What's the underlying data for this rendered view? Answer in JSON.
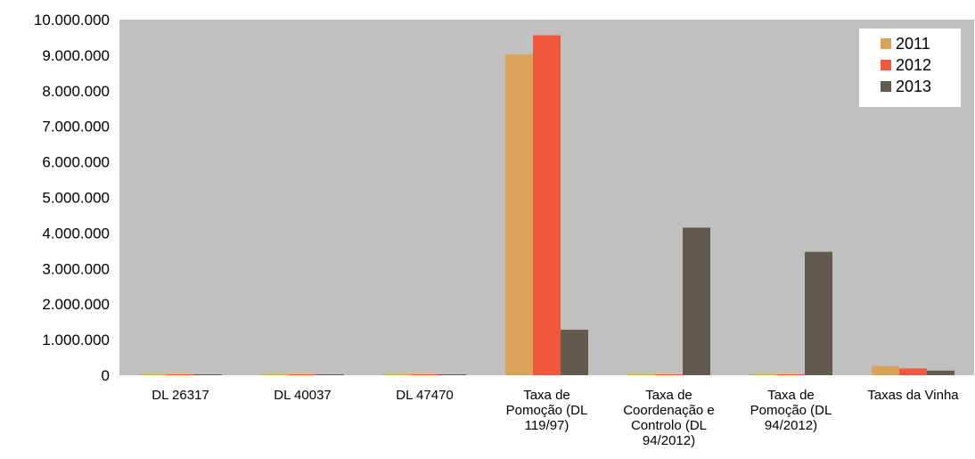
{
  "chart_data": {
    "type": "bar",
    "categories": [
      [
        "DL 26317"
      ],
      [
        "DL 40037"
      ],
      [
        "DL 47470"
      ],
      [
        "Taxa de",
        "Pomoção (DL",
        "119/97)"
      ],
      [
        "Taxa de",
        "Coordenação e",
        "Controlo (DL",
        "94/2012)"
      ],
      [
        "Taxa de",
        "Pomoção (DL",
        "94/2012)"
      ],
      [
        "Taxas da Vinha"
      ]
    ],
    "series": [
      {
        "name": "2011",
        "color": "#d9a45a",
        "values": [
          20000,
          15000,
          15000,
          9020000,
          15000,
          15000,
          260000
        ]
      },
      {
        "name": "2012",
        "color": "#f05a3a",
        "values": [
          20000,
          15000,
          15000,
          9560000,
          15000,
          15000,
          190000
        ]
      },
      {
        "name": "2013",
        "color": "#635a4e",
        "values": [
          20000,
          15000,
          15000,
          1280000,
          4150000,
          3470000,
          130000
        ]
      }
    ],
    "ylim": [
      0,
      10000000
    ],
    "yticks": [
      0,
      1000000,
      2000000,
      3000000,
      4000000,
      5000000,
      6000000,
      7000000,
      8000000,
      9000000,
      10000000
    ],
    "ytick_labels": [
      "0",
      "1.000.000",
      "2.000.000",
      "3.000.000",
      "4.000.000",
      "5.000.000",
      "6.000.000",
      "7.000.000",
      "8.000.000",
      "9.000.000",
      "10.000.000"
    ],
    "legend_position": "top-right",
    "grid": false,
    "plot_background": "#c0c0c0"
  }
}
